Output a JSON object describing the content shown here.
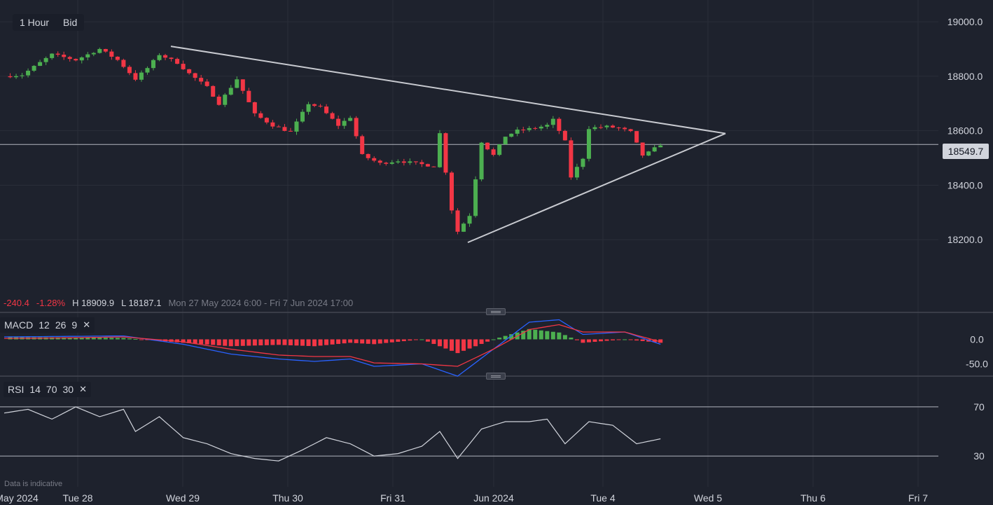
{
  "toolbar": {
    "timeframe": "1 Hour",
    "price_type": "Bid"
  },
  "stats": {
    "change": "-240.4",
    "change_pct": "-1.28%",
    "high": "H 18909.9",
    "low": "L 18187.1",
    "range": "Mon 27 May 2024 6:00 - Fri 7 Jun 2024 17:00"
  },
  "current_price": "18549.7",
  "footnote": "Data is indicative",
  "macd_legend": {
    "name": "MACD",
    "fast": "12",
    "slow": "26",
    "signal": "9",
    "close": "✕"
  },
  "rsi_legend": {
    "name": "RSI",
    "period": "14",
    "upper": "70",
    "lower": "30",
    "close": "✕"
  },
  "colors": {
    "up": "#26a69a",
    "down": "#f23645",
    "background": "#1e222d",
    "trendline": "#d1d4dc"
  },
  "chart_data": [
    {
      "type": "candlestick",
      "x_ticks": [
        "May 2024",
        "Tue 28",
        "Wed 29",
        "Thu 30",
        "Fri 31",
        "Jun 2024",
        "Tue 4",
        "Wed 5",
        "Thu 6",
        "Fri 7"
      ],
      "y_ticks": [
        "19000.0",
        "18800.0",
        "18600.0",
        "18400.0",
        "18200.0"
      ],
      "ylim": [
        18000,
        19080
      ],
      "last_price": 18549.7,
      "trendlines": [
        {
          "from": {
            "x": "Wed 29",
            "y": 18910
          },
          "to": {
            "x": "Wed 5",
            "y": 18590
          }
        },
        {
          "from": {
            "x": "Fri 31",
            "y": 18190
          },
          "to": {
            "x": "Wed 5",
            "y": 18590
          }
        }
      ],
      "anchors": [
        [
          0,
          18800
        ],
        [
          3,
          18805
        ],
        [
          6,
          18850
        ],
        [
          8,
          18880
        ],
        [
          12,
          18860
        ],
        [
          16,
          18900
        ],
        [
          19,
          18860
        ],
        [
          22,
          18790
        ],
        [
          24,
          18830
        ],
        [
          26,
          18880
        ],
        [
          29,
          18850
        ],
        [
          31,
          18810
        ],
        [
          34,
          18760
        ],
        [
          36,
          18700
        ],
        [
          39,
          18790
        ],
        [
          42,
          18660
        ],
        [
          45,
          18620
        ],
        [
          48,
          18595
        ],
        [
          51,
          18700
        ],
        [
          53,
          18685
        ],
        [
          56,
          18620
        ],
        [
          58,
          18650
        ],
        [
          60,
          18510
        ],
        [
          63,
          18480
        ],
        [
          66,
          18490
        ],
        [
          69,
          18480
        ],
        [
          72,
          18470
        ],
        [
          73,
          18590
        ],
        [
          75,
          18310
        ],
        [
          76,
          18230
        ],
        [
          78,
          18290
        ],
        [
          80,
          18560
        ],
        [
          82,
          18510
        ],
        [
          84,
          18580
        ],
        [
          86,
          18600
        ],
        [
          89,
          18610
        ],
        [
          91,
          18620
        ],
        [
          92,
          18640
        ],
        [
          94,
          18560
        ],
        [
          95,
          18430
        ],
        [
          97,
          18500
        ],
        [
          98,
          18610
        ],
        [
          101,
          18615
        ],
        [
          103,
          18610
        ],
        [
          105,
          18595
        ],
        [
          107,
          18510
        ],
        [
          108,
          18520
        ],
        [
          110,
          18549.7
        ]
      ]
    },
    {
      "type": "macd",
      "y_ticks": [
        "0.0",
        "-50.0"
      ],
      "ylim": [
        -75,
        55
      ],
      "series": [
        {
          "values": [
            [
              0,
              5
            ],
            [
              10,
              6
            ],
            [
              20,
              7
            ],
            [
              30,
              -10
            ],
            [
              38,
              -30
            ],
            [
              46,
              -40
            ],
            [
              52,
              -45
            ],
            [
              58,
              -40
            ],
            [
              62,
              -55
            ],
            [
              70,
              -50
            ],
            [
              76,
              -75
            ],
            [
              82,
              -20
            ],
            [
              88,
              35
            ],
            [
              93,
              40
            ],
            [
              97,
              10
            ],
            [
              104,
              15
            ],
            [
              110,
              -10
            ]
          ]
        },
        {
          "values": [
            [
              0,
              2
            ],
            [
              10,
              3
            ],
            [
              20,
              5
            ],
            [
              30,
              -5
            ],
            [
              38,
              -20
            ],
            [
              46,
              -32
            ],
            [
              52,
              -35
            ],
            [
              58,
              -35
            ],
            [
              62,
              -48
            ],
            [
              70,
              -50
            ],
            [
              76,
              -55
            ],
            [
              82,
              -20
            ],
            [
              88,
              20
            ],
            [
              93,
              30
            ],
            [
              97,
              15
            ],
            [
              104,
              15
            ],
            [
              110,
              -5
            ]
          ]
        }
      ]
    },
    {
      "type": "rsi",
      "y_ticks": [
        "70",
        "30"
      ],
      "ylim": [
        5,
        95
      ],
      "bands": [
        70,
        30
      ],
      "values": [
        [
          0,
          65
        ],
        [
          4,
          68
        ],
        [
          8,
          60
        ],
        [
          12,
          70
        ],
        [
          16,
          62
        ],
        [
          20,
          68
        ],
        [
          22,
          50
        ],
        [
          26,
          62
        ],
        [
          30,
          45
        ],
        [
          34,
          40
        ],
        [
          38,
          32
        ],
        [
          42,
          28
        ],
        [
          46,
          26
        ],
        [
          50,
          35
        ],
        [
          54,
          45
        ],
        [
          58,
          40
        ],
        [
          62,
          30
        ],
        [
          66,
          32
        ],
        [
          70,
          38
        ],
        [
          73,
          50
        ],
        [
          76,
          28
        ],
        [
          80,
          52
        ],
        [
          84,
          58
        ],
        [
          88,
          58
        ],
        [
          91,
          60
        ],
        [
          94,
          40
        ],
        [
          98,
          58
        ],
        [
          102,
          55
        ],
        [
          106,
          40
        ],
        [
          110,
          44
        ]
      ]
    }
  ]
}
